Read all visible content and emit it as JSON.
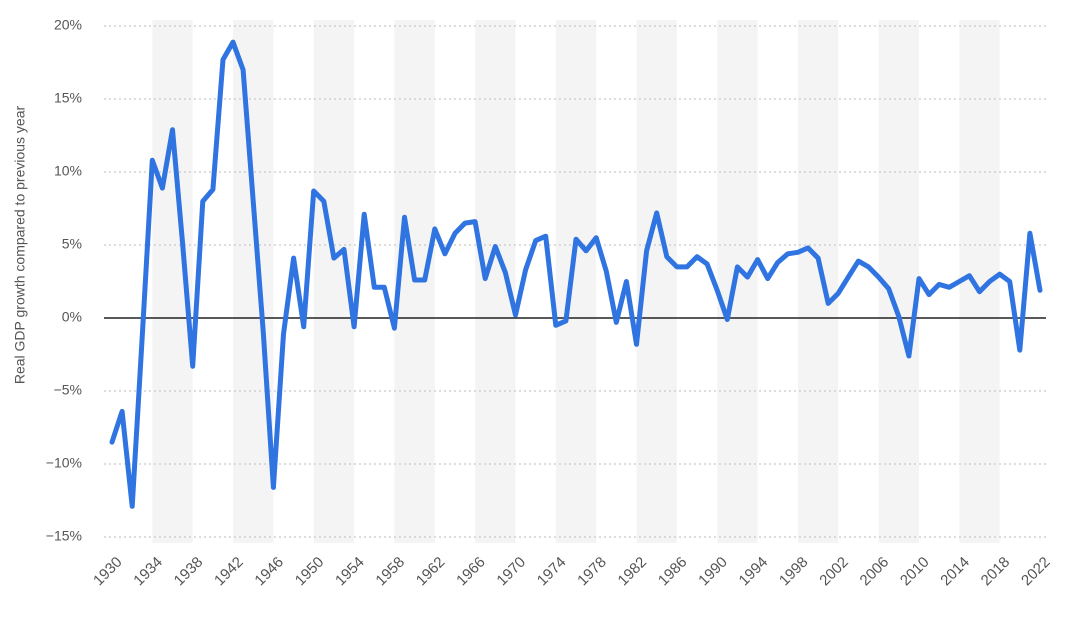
{
  "chart_data": {
    "type": "line",
    "y_label": "Real GDP growth compared to previous year",
    "x": [
      1930,
      1931,
      1932,
      1933,
      1934,
      1935,
      1936,
      1937,
      1938,
      1939,
      1940,
      1941,
      1942,
      1943,
      1944,
      1945,
      1946,
      1947,
      1948,
      1949,
      1950,
      1951,
      1952,
      1953,
      1954,
      1955,
      1956,
      1957,
      1958,
      1959,
      1960,
      1961,
      1962,
      1963,
      1964,
      1965,
      1966,
      1967,
      1968,
      1969,
      1970,
      1971,
      1972,
      1973,
      1974,
      1975,
      1976,
      1977,
      1978,
      1979,
      1980,
      1981,
      1982,
      1983,
      1984,
      1985,
      1986,
      1987,
      1988,
      1989,
      1990,
      1991,
      1992,
      1993,
      1994,
      1995,
      1996,
      1997,
      1998,
      1999,
      2000,
      2001,
      2002,
      2003,
      2004,
      2005,
      2006,
      2007,
      2008,
      2009,
      2010,
      2011,
      2012,
      2013,
      2014,
      2015,
      2016,
      2017,
      2018,
      2019,
      2020,
      2021,
      2022
    ],
    "series": [
      {
        "name": "Real GDP growth",
        "color": "#2f74e0",
        "values": [
          -8.5,
          -6.4,
          -12.9,
          -1.2,
          10.8,
          8.9,
          12.9,
          5.1,
          -3.3,
          8.0,
          8.8,
          17.7,
          18.9,
          17.0,
          8.0,
          -1.0,
          -11.6,
          -1.1,
          4.1,
          -0.6,
          8.7,
          8.0,
          4.1,
          4.7,
          -0.6,
          7.1,
          2.1,
          2.1,
          -0.7,
          6.9,
          2.6,
          2.6,
          6.1,
          4.4,
          5.8,
          6.5,
          6.6,
          2.7,
          4.9,
          3.1,
          0.2,
          3.3,
          5.3,
          5.6,
          -0.5,
          -0.2,
          5.4,
          4.6,
          5.5,
          3.2,
          -0.3,
          2.5,
          -1.8,
          4.6,
          7.2,
          4.2,
          3.5,
          3.5,
          4.2,
          3.7,
          1.9,
          -0.1,
          3.5,
          2.8,
          4.0,
          2.7,
          3.8,
          4.4,
          4.5,
          4.8,
          4.1,
          1.0,
          1.7,
          2.8,
          3.9,
          3.5,
          2.8,
          2.0,
          0.1,
          -2.6,
          2.7,
          1.6,
          2.3,
          2.1,
          2.5,
          2.9,
          1.8,
          2.5,
          3.0,
          2.5,
          -2.2,
          5.8,
          1.9
        ]
      }
    ],
    "xlim": [
      1930,
      2022
    ],
    "xticks": [
      1930,
      1934,
      1938,
      1942,
      1946,
      1950,
      1954,
      1958,
      1962,
      1966,
      1970,
      1974,
      1978,
      1982,
      1986,
      1990,
      1994,
      1998,
      2002,
      2006,
      2010,
      2014,
      2018,
      2022
    ],
    "ylim": [
      -15,
      20
    ],
    "yticks": [
      {
        "value": -15,
        "label": "−15%"
      },
      {
        "value": -10,
        "label": "−10%"
      },
      {
        "value": -5,
        "label": "−5%"
      },
      {
        "value": 0,
        "label": "0%"
      },
      {
        "value": 5,
        "label": "5%"
      },
      {
        "value": 10,
        "label": "10%"
      },
      {
        "value": 15,
        "label": "15%"
      },
      {
        "value": 20,
        "label": "20%"
      }
    ],
    "grid": true
  }
}
